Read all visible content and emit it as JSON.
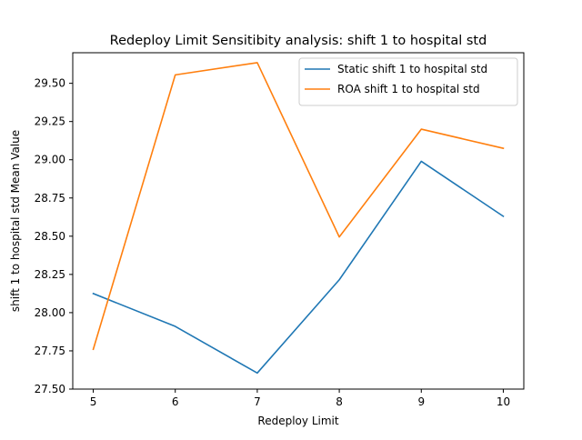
{
  "chart_data": {
    "type": "line",
    "title": "Redeploy Limit Sensitibity analysis: shift 1 to hospital std",
    "xlabel": "Redeploy Limit",
    "ylabel": "shift 1 to hospital std Mean Value",
    "x": [
      5,
      6,
      7,
      8,
      9,
      10
    ],
    "xlim": [
      4.75,
      10.25
    ],
    "ylim": [
      27.5,
      29.7
    ],
    "x_ticks": [
      5,
      6,
      7,
      8,
      9,
      10
    ],
    "x_tick_labels": [
      "5",
      "6",
      "7",
      "8",
      "9",
      "10"
    ],
    "y_ticks": [
      27.5,
      27.75,
      28.0,
      28.25,
      28.5,
      28.75,
      29.0,
      29.25,
      29.5
    ],
    "y_tick_labels": [
      "27.50",
      "27.75",
      "28.00",
      "28.25",
      "28.50",
      "28.75",
      "29.00",
      "29.25",
      "29.50"
    ],
    "grid": false,
    "legend_position": "top-right",
    "series": [
      {
        "name": "Static shift 1 to hospital std",
        "color": "#1f77b4",
        "values": [
          28.125,
          27.91,
          27.605,
          28.215,
          28.99,
          28.63
        ]
      },
      {
        "name": "ROA shift 1 to hospital std",
        "color": "#ff7f0e",
        "values": [
          27.76,
          29.555,
          29.635,
          28.495,
          29.2,
          29.075
        ]
      }
    ]
  }
}
